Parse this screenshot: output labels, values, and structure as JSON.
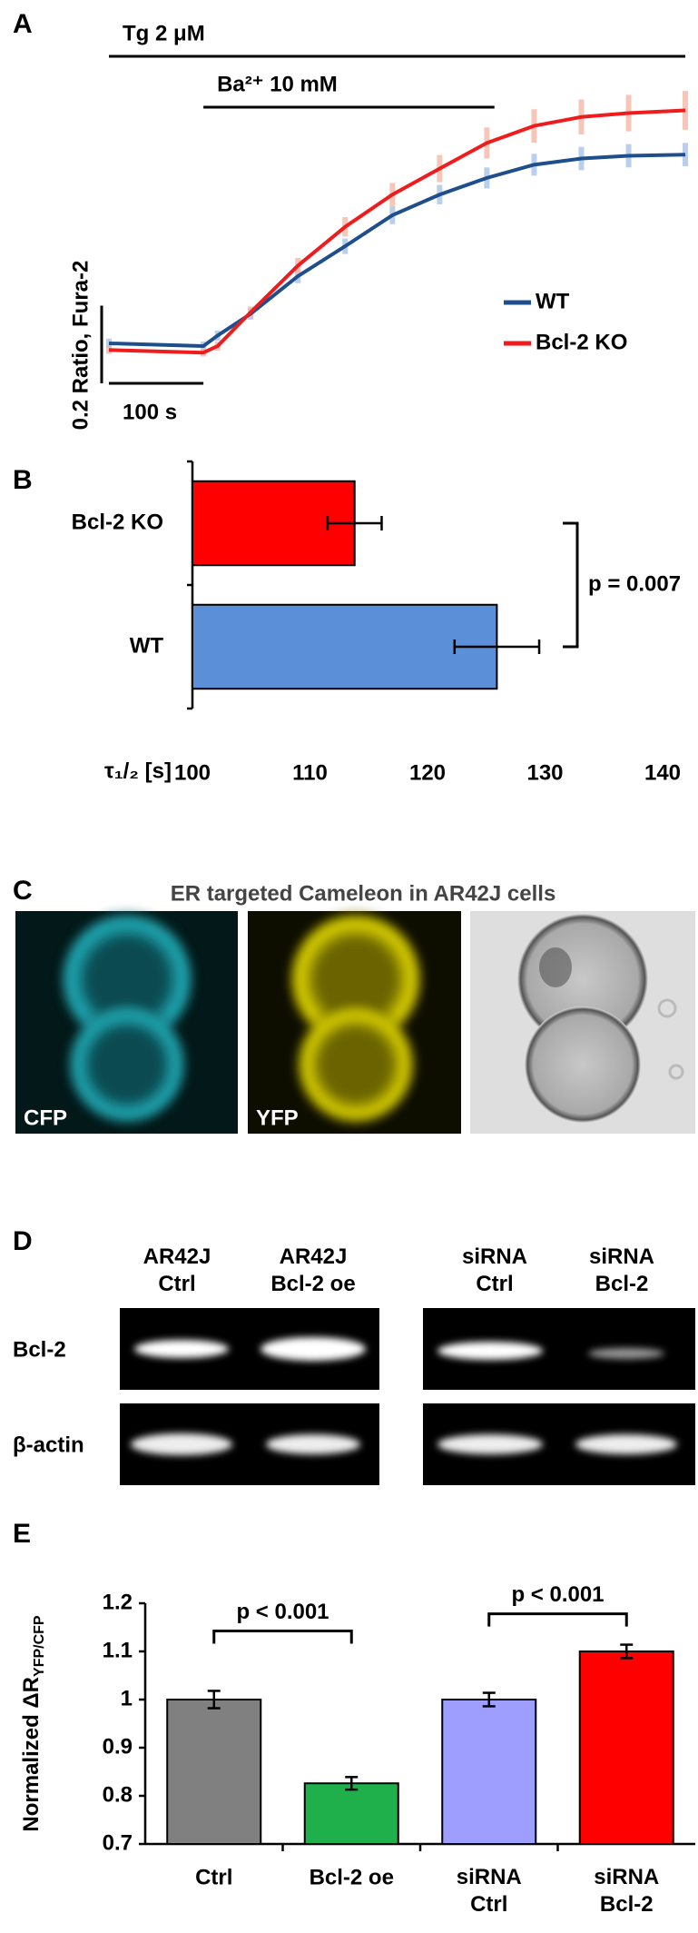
{
  "chart_data": [
    {
      "type": "line",
      "panel_label": "A",
      "x": [
        0,
        100,
        115,
        150,
        200,
        250,
        300,
        350,
        400,
        450,
        500,
        550,
        610
      ],
      "xlim": [
        0,
        610
      ],
      "ylim": [
        0.4,
        1.2
      ],
      "treatments": [
        {
          "label": "Tg 2 μM",
          "start": 0,
          "end": 610
        },
        {
          "label": "Ba²⁺ 10 mM",
          "start": 100,
          "end": 408
        }
      ],
      "x_scale_bar": {
        "value": 100,
        "label": "100 s"
      },
      "y_scale_bar": {
        "value": 0.2,
        "label": "0.2 Ratio, Fura-2"
      },
      "series": [
        {
          "name": "WT",
          "color": "#1f4e8c",
          "error_color": "#a9c4ea",
          "values": [
            0.517,
            0.51,
            0.537,
            0.593,
            0.69,
            0.767,
            0.847,
            0.9,
            0.943,
            0.977,
            0.993,
            1.0,
            1.003
          ],
          "errors": [
            0.012,
            0.012,
            0.013,
            0.015,
            0.018,
            0.02,
            0.023,
            0.025,
            0.027,
            0.028,
            0.03,
            0.03,
            0.03
          ]
        },
        {
          "name": "Bcl-2 KO",
          "color": "#ee1c1c",
          "error_color": "#f5b8a8",
          "values": [
            0.5,
            0.493,
            0.51,
            0.597,
            0.717,
            0.817,
            0.9,
            0.967,
            1.033,
            1.077,
            1.1,
            1.11,
            1.117
          ],
          "errors": [
            0.01,
            0.01,
            0.012,
            0.015,
            0.02,
            0.025,
            0.03,
            0.035,
            0.04,
            0.043,
            0.045,
            0.047,
            0.05
          ]
        }
      ]
    },
    {
      "type": "bar",
      "orientation": "horizontal",
      "panel_label": "B",
      "x_label": "τ₁/₂ [s]",
      "categories": [
        "Bcl-2 KO",
        "WT"
      ],
      "values": [
        113.8,
        125.9
      ],
      "errors": [
        2.3,
        3.6
      ],
      "colors": [
        "#ff0000",
        "#5b8fd8"
      ],
      "xlim": [
        100,
        140
      ],
      "xticks": [
        100,
        110,
        120,
        130,
        140
      ],
      "annotations": [
        "p = 0.007"
      ]
    },
    {
      "type": "bar",
      "orientation": "vertical",
      "panel_label": "E",
      "y_label": "Normalized ΔR",
      "y_label_subscript": "YFP/CFP",
      "categories": [
        "Ctrl",
        "Bcl-2 oe",
        "siRNA\nCtrl",
        "siRNA\nBcl-2"
      ],
      "values": [
        1.0,
        0.826,
        1.0,
        1.1
      ],
      "errors": [
        0.018,
        0.013,
        0.014,
        0.014
      ],
      "colors": [
        "#808080",
        "#1fb04c",
        "#9e9eff",
        "#ff0000"
      ],
      "ylim": [
        0.7,
        1.2
      ],
      "yticks": [
        0.7,
        0.8,
        0.9,
        1,
        1.1,
        1.2
      ],
      "annotations": [
        "p < 0.001",
        "p < 0.001"
      ]
    }
  ],
  "imaging": {
    "panel_label": "C",
    "title": "ER targeted Cameleon in AR42J cells",
    "image_labels": [
      "CFP",
      "YFP"
    ]
  },
  "blots": {
    "panel_label": "D",
    "columns": [
      "AR42J\nCtrl",
      "AR42J\nBcl-2 oe",
      "siRNA\nCtrl",
      "siRNA\nBcl-2"
    ],
    "rows": [
      "Bcl-2",
      "β-actin"
    ]
  }
}
